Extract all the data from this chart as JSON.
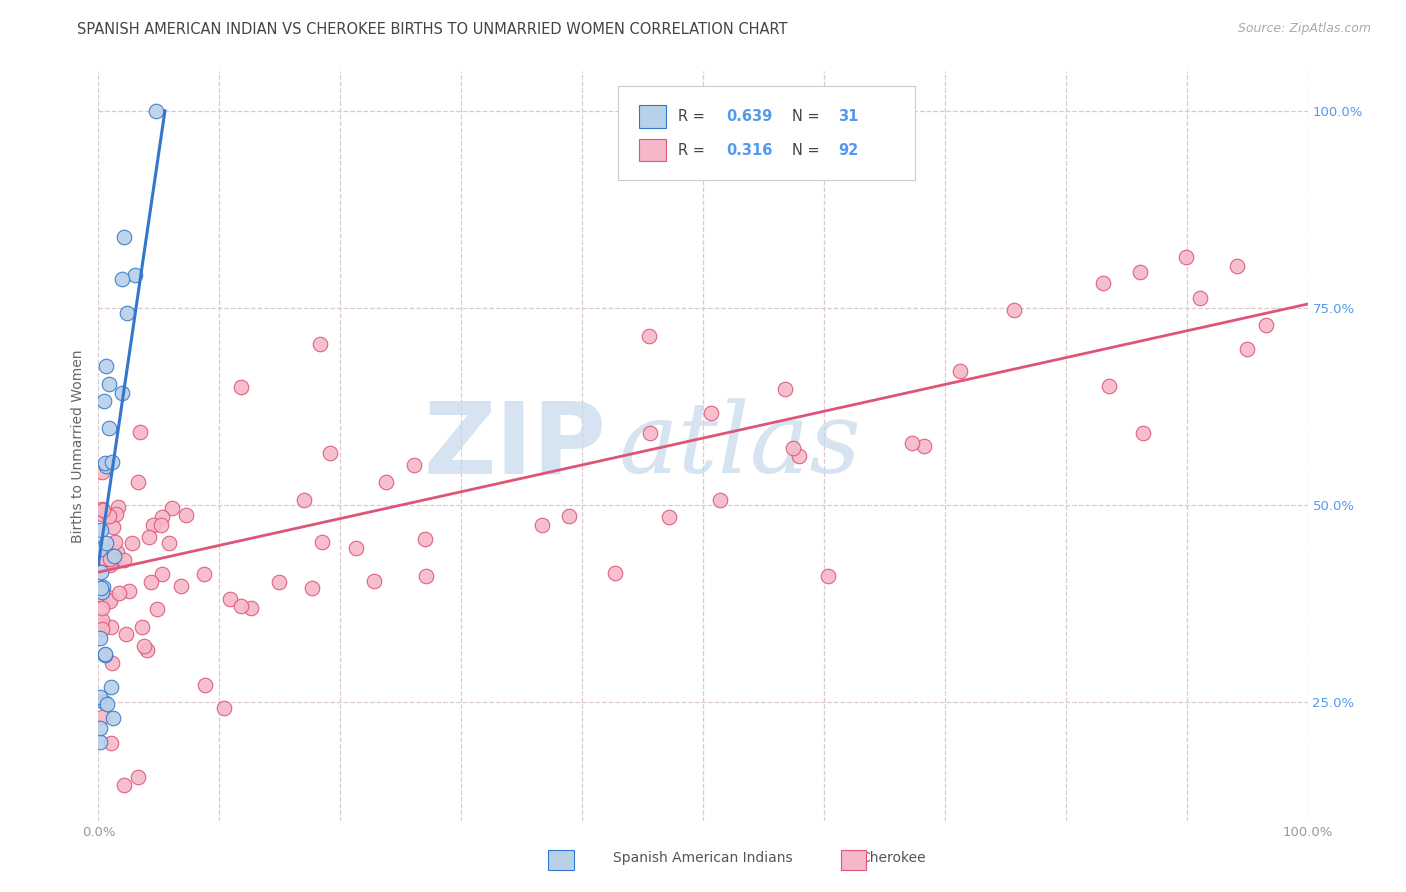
{
  "title": "SPANISH AMERICAN INDIAN VS CHEROKEE BIRTHS TO UNMARRIED WOMEN CORRELATION CHART",
  "source": "Source: ZipAtlas.com",
  "ylabel": "Births to Unmarried Women",
  "xlim": [
    0.0,
    1.0
  ],
  "ylim": [
    0.0,
    1.08
  ],
  "plot_ylim": [
    0.1,
    1.05
  ],
  "xtick_positions": [
    0.0,
    0.1,
    0.2,
    0.3,
    0.4,
    0.5,
    0.6,
    0.7,
    0.8,
    0.9,
    1.0
  ],
  "xtick_labels_show": [
    "0.0%",
    "",
    "",
    "",
    "",
    "",
    "",
    "",
    "",
    "",
    "100.0%"
  ],
  "ytick_positions": [
    0.25,
    0.5,
    0.75,
    1.0
  ],
  "ytick_labels": [
    "25.0%",
    "50.0%",
    "75.0%",
    "100.0%"
  ],
  "legend_r1": "0.639",
  "legend_n1": "31",
  "legend_r2": "0.316",
  "legend_n2": "92",
  "color_blue": "#b8d0e8",
  "color_pink": "#f5b8c8",
  "line_blue": "#3377cc",
  "line_pink": "#dd5577",
  "watermark_zi": "ZIP",
  "watermark_atlas": "atlas",
  "watermark_color": "#c5d8ec",
  "background_color": "#ffffff",
  "grid_color": "#ddc8d0",
  "title_color": "#444444",
  "source_color": "#aaaaaa",
  "ylabel_color": "#666666",
  "right_tick_color": "#5599ee",
  "blue_trend_x": [
    0.0,
    0.055
  ],
  "blue_trend_y": [
    0.425,
    1.0
  ],
  "pink_trend_x": [
    0.0,
    1.0
  ],
  "pink_trend_y": [
    0.415,
    0.755
  ]
}
